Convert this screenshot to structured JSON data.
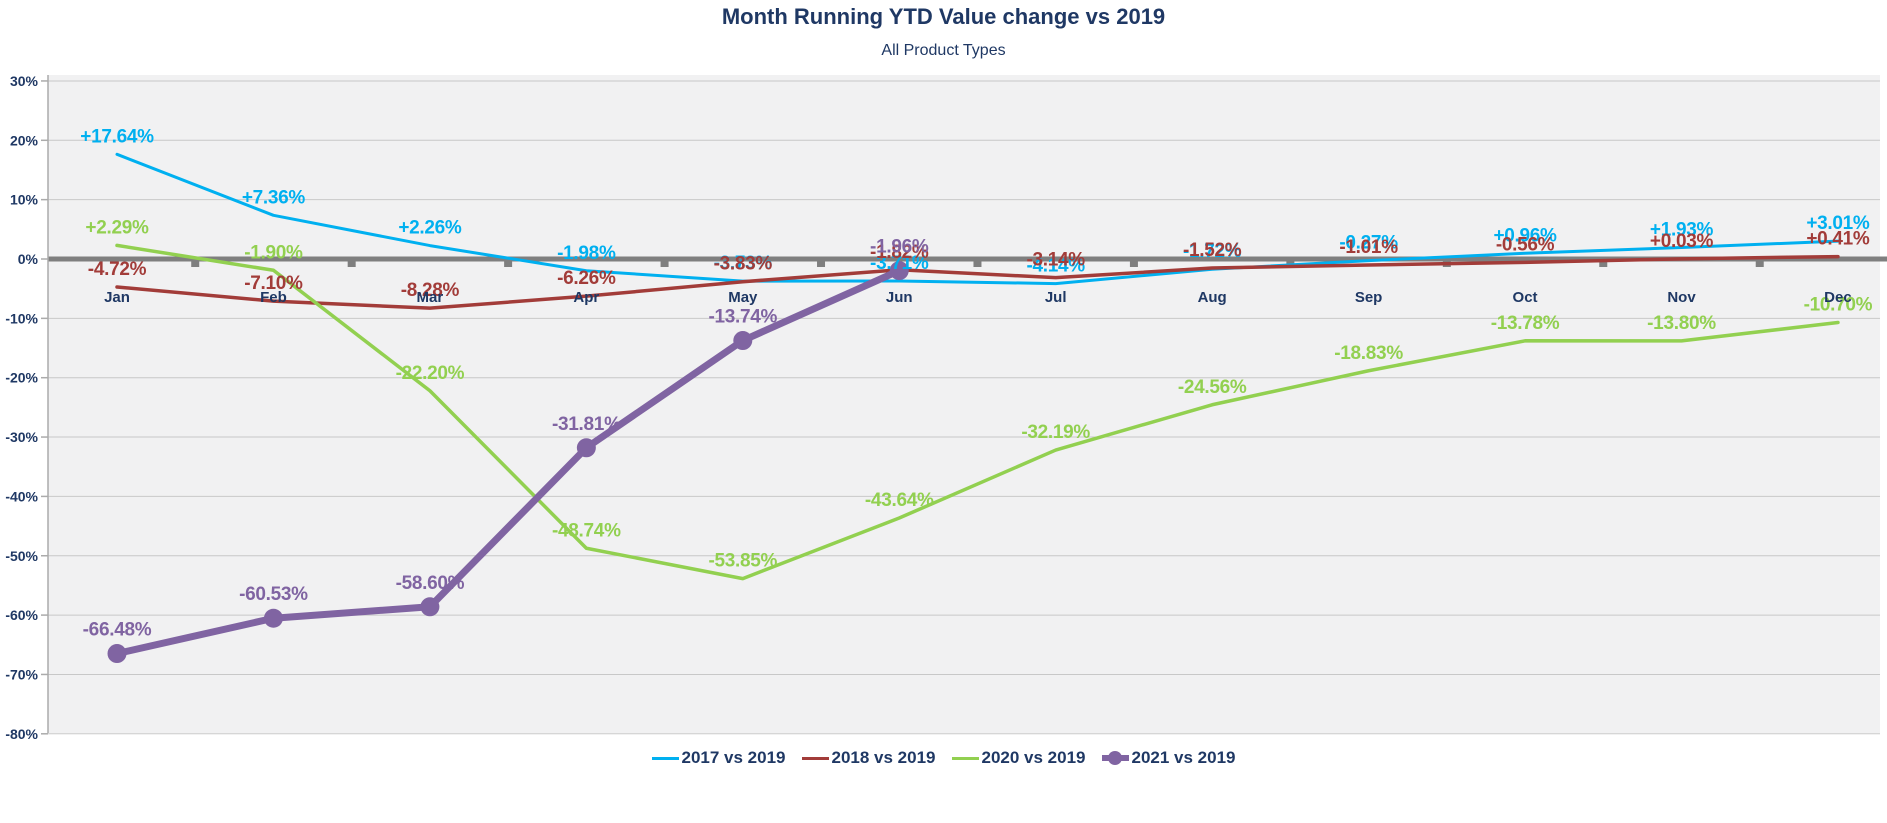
{
  "header": {
    "title": "Month Running YTD Value change vs 2019",
    "subtitle": "All Product Types"
  },
  "chart_data": {
    "type": "line",
    "title": "Month Running YTD Value change vs 2019",
    "subtitle": "All Product Types",
    "categories": [
      "Jan",
      "Feb",
      "Mar",
      "Apr",
      "May",
      "Jun",
      "Jul",
      "Aug",
      "Sep",
      "Oct",
      "Nov",
      "Dec"
    ],
    "y_axis": {
      "tick_labels": [
        "30%",
        "20%",
        "10%",
        "0%",
        "-10%",
        "-20%",
        "-30%",
        "-40%",
        "-50%",
        "-60%",
        "-70%",
        "-80%"
      ],
      "tick_values": [
        30,
        20,
        10,
        0,
        -10,
        -20,
        -30,
        -40,
        -50,
        -60,
        -70,
        -80
      ],
      "min": -80,
      "max": 30,
      "step": 10,
      "unit": "%"
    },
    "grid": true,
    "legend_position": "bottom",
    "colors": {
      "plot_background": "#F1F1F2",
      "gridline": "#C8C8C8",
      "zero_line": "#7F7F7F",
      "axis_text": "#1F3864"
    },
    "series": [
      {
        "name": "2017 vs 2019",
        "color": "#00B0F0",
        "marker": false,
        "values": [
          17.64,
          7.36,
          2.26,
          -1.98,
          -3.73,
          -3.71,
          -4.14,
          -1.72,
          -0.27,
          0.96,
          1.93,
          3.01
        ],
        "labels": [
          "+17.64%",
          "+7.36%",
          "+2.26%",
          "-1.98%",
          "-3.73%",
          "-3.71%",
          "-4.14%",
          "-1.72%",
          "-0.27%",
          "+0.96%",
          "+1.93%",
          "+3.01%"
        ]
      },
      {
        "name": "2018 vs 2019",
        "color": "#A23C39",
        "marker": false,
        "values": [
          -4.72,
          -7.1,
          -8.28,
          -6.26,
          -3.83,
          -1.82,
          -3.14,
          -1.52,
          -1.01,
          -0.56,
          0.03,
          0.41
        ],
        "labels": [
          "-4.72%",
          "-7.10%",
          "-8.28%",
          "-6.26%",
          "-3.83%",
          "-1.82%",
          "-3.14%",
          "-1.52%",
          "-1.01%",
          "-0.56%",
          "+0.03%",
          "+0.41%"
        ]
      },
      {
        "name": "2020 vs 2019",
        "color": "#92D050",
        "marker": false,
        "values": [
          2.29,
          -1.9,
          -22.2,
          -48.74,
          -53.85,
          -43.64,
          -32.19,
          -24.56,
          -18.83,
          -13.78,
          -13.8,
          -10.7
        ],
        "labels": [
          "+2.29%",
          "-1.90%",
          "-22.20%",
          "-48.74%",
          "-53.85%",
          "-43.64%",
          "-32.19%",
          "-24.56%",
          "-18.83%",
          "-13.78%",
          "-13.80%",
          "-10.70%"
        ]
      },
      {
        "name": "2021 vs 2019",
        "color": "#8064A2",
        "marker": true,
        "values": [
          -66.48,
          -60.53,
          -58.6,
          -31.81,
          -13.74,
          -1.96
        ],
        "labels": [
          "-66.48%",
          "-60.53%",
          "-58.60%",
          "-31.81%",
          "-13.74%",
          "-1.96%"
        ]
      }
    ]
  }
}
